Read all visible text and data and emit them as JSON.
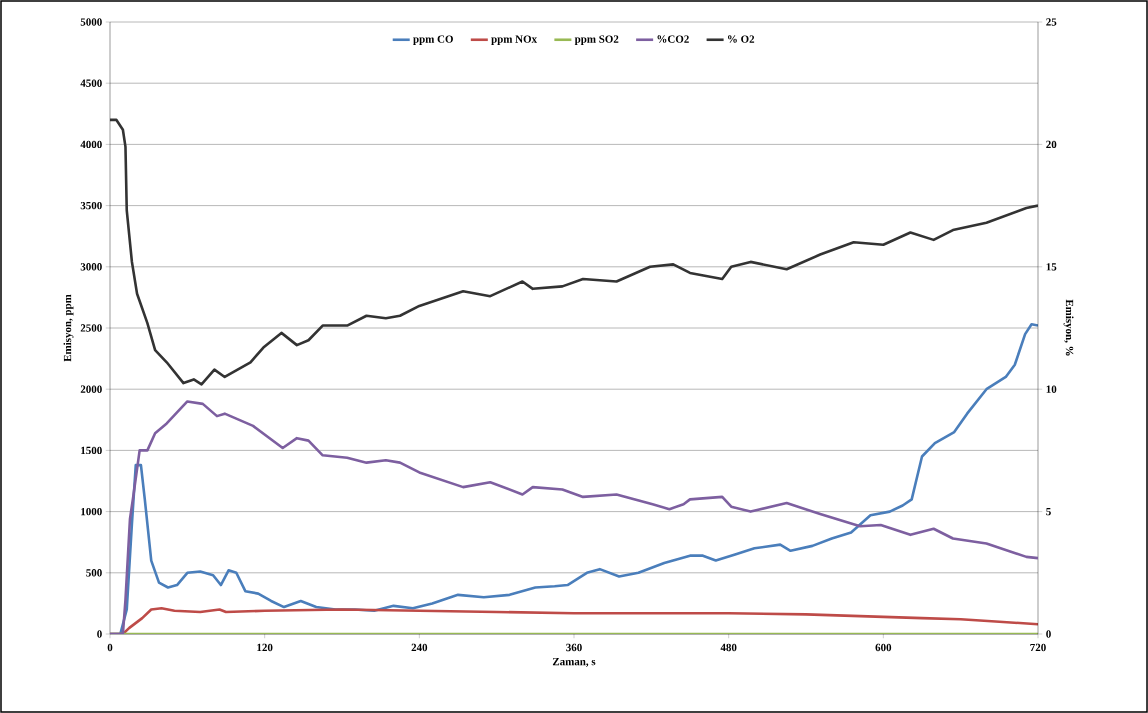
{
  "chart_data": {
    "type": "line",
    "xlabel": "Zaman, s",
    "ylabel": "Emisyon, ppm",
    "y2label": "Emisyon, %",
    "xlim": [
      0,
      720
    ],
    "xticks": [
      0,
      120,
      240,
      360,
      480,
      600,
      720
    ],
    "ylim": [
      0,
      5000
    ],
    "yticks": [
      0,
      500,
      1000,
      1500,
      2000,
      2500,
      3000,
      3500,
      4000,
      4500,
      5000
    ],
    "y2lim": [
      0,
      25
    ],
    "y2ticks": [
      0,
      5,
      10,
      15,
      20,
      25
    ],
    "grid": "y",
    "legend": "top",
    "series": [
      {
        "name": "ppm CO",
        "color": "#4a7ebb",
        "x": [
          0,
          8,
          13,
          17,
          20,
          24,
          27,
          32,
          38,
          45,
          52,
          60,
          70,
          80,
          86,
          92,
          98,
          105,
          115,
          125,
          135,
          148,
          160,
          175,
          190,
          205,
          220,
          235,
          250,
          270,
          290,
          310,
          330,
          345,
          355,
          370,
          380,
          395,
          410,
          430,
          450,
          460,
          470,
          485,
          500,
          520,
          528,
          545,
          560,
          575,
          590,
          605,
          615,
          622,
          630,
          640,
          655,
          665,
          680,
          695,
          702,
          710,
          715,
          720
        ],
        "values": [
          0,
          0,
          200,
          900,
          1380,
          1380,
          1100,
          600,
          420,
          380,
          400,
          500,
          510,
          480,
          400,
          520,
          500,
          350,
          330,
          270,
          220,
          270,
          220,
          200,
          200,
          190,
          230,
          210,
          250,
          320,
          300,
          320,
          380,
          390,
          400,
          500,
          530,
          470,
          500,
          580,
          640,
          640,
          600,
          650,
          700,
          730,
          680,
          720,
          780,
          830,
          970,
          1000,
          1050,
          1100,
          1450,
          1560,
          1650,
          1800,
          2000,
          2100,
          2200,
          2450,
          2530,
          2520
        ]
      },
      {
        "name": "ppm NOx",
        "color": "#be4b48",
        "x": [
          0,
          10,
          15,
          25,
          32,
          40,
          50,
          70,
          85,
          90,
          120,
          180,
          240,
          300,
          360,
          420,
          480,
          540,
          600,
          630,
          660,
          690,
          720
        ],
        "values": [
          0,
          0,
          50,
          130,
          200,
          210,
          190,
          180,
          200,
          180,
          190,
          200,
          190,
          180,
          170,
          170,
          170,
          160,
          140,
          130,
          120,
          100,
          80
        ]
      },
      {
        "name": "ppm SO2",
        "color": "#98b954",
        "x": [
          0,
          120,
          240,
          360,
          480,
          600,
          720
        ],
        "values": [
          0,
          0,
          0,
          0,
          0,
          0,
          0
        ]
      },
      {
        "name": "%CO2",
        "color": "#7d5fa0",
        "axis": "y2",
        "x": [
          0,
          10,
          12,
          15.5,
          18,
          23,
          29,
          35,
          44,
          60,
          72,
          83,
          89,
          111,
          134,
          145,
          154,
          165,
          184,
          199,
          214,
          225,
          240,
          274,
          295,
          320,
          328,
          351,
          367,
          393,
          421,
          434,
          445,
          450,
          475,
          482,
          497,
          525,
          551,
          582,
          598,
          621,
          639,
          654,
          680,
          711,
          720
        ],
        "values": [
          0,
          0,
          1.4,
          4.7,
          5.6,
          7.5,
          7.5,
          8.2,
          8.6,
          9.5,
          9.4,
          8.9,
          9.0,
          8.5,
          7.6,
          8.0,
          7.9,
          7.3,
          7.2,
          7.0,
          7.1,
          7.0,
          6.6,
          6.0,
          6.2,
          5.7,
          6.0,
          5.9,
          5.6,
          5.7,
          5.3,
          5.1,
          5.3,
          5.5,
          5.6,
          5.2,
          5.0,
          5.35,
          4.9,
          4.4,
          4.45,
          4.05,
          4.3,
          3.9,
          3.7,
          3.15,
          3.1
        ]
      },
      {
        "name": "% O2",
        "color": "#333333",
        "axis": "y2",
        "x": [
          0,
          5,
          10,
          12,
          13,
          17,
          21,
          29,
          35,
          44,
          57,
          65,
          71,
          81,
          89,
          109,
          119,
          133,
          145,
          154,
          165,
          184,
          199,
          214,
          225,
          240,
          274,
          295,
          320,
          328,
          351,
          367,
          393,
          419,
          437,
          450,
          475,
          482,
          497,
          525,
          551,
          577,
          600,
          621,
          639,
          654,
          680,
          711,
          720
        ],
        "values": [
          21.0,
          21.0,
          20.6,
          19.9,
          17.3,
          15.2,
          13.9,
          12.7,
          11.6,
          11.1,
          10.25,
          10.4,
          10.2,
          10.8,
          10.5,
          11.1,
          11.7,
          12.3,
          11.8,
          12.0,
          12.6,
          12.6,
          13.0,
          12.9,
          13.0,
          13.4,
          14.0,
          13.8,
          14.4,
          14.1,
          14.2,
          14.5,
          14.4,
          15.0,
          15.1,
          14.75,
          14.5,
          15.0,
          15.2,
          14.9,
          15.5,
          16.0,
          15.9,
          16.4,
          16.1,
          16.5,
          16.8,
          17.4,
          17.5
        ]
      }
    ]
  }
}
